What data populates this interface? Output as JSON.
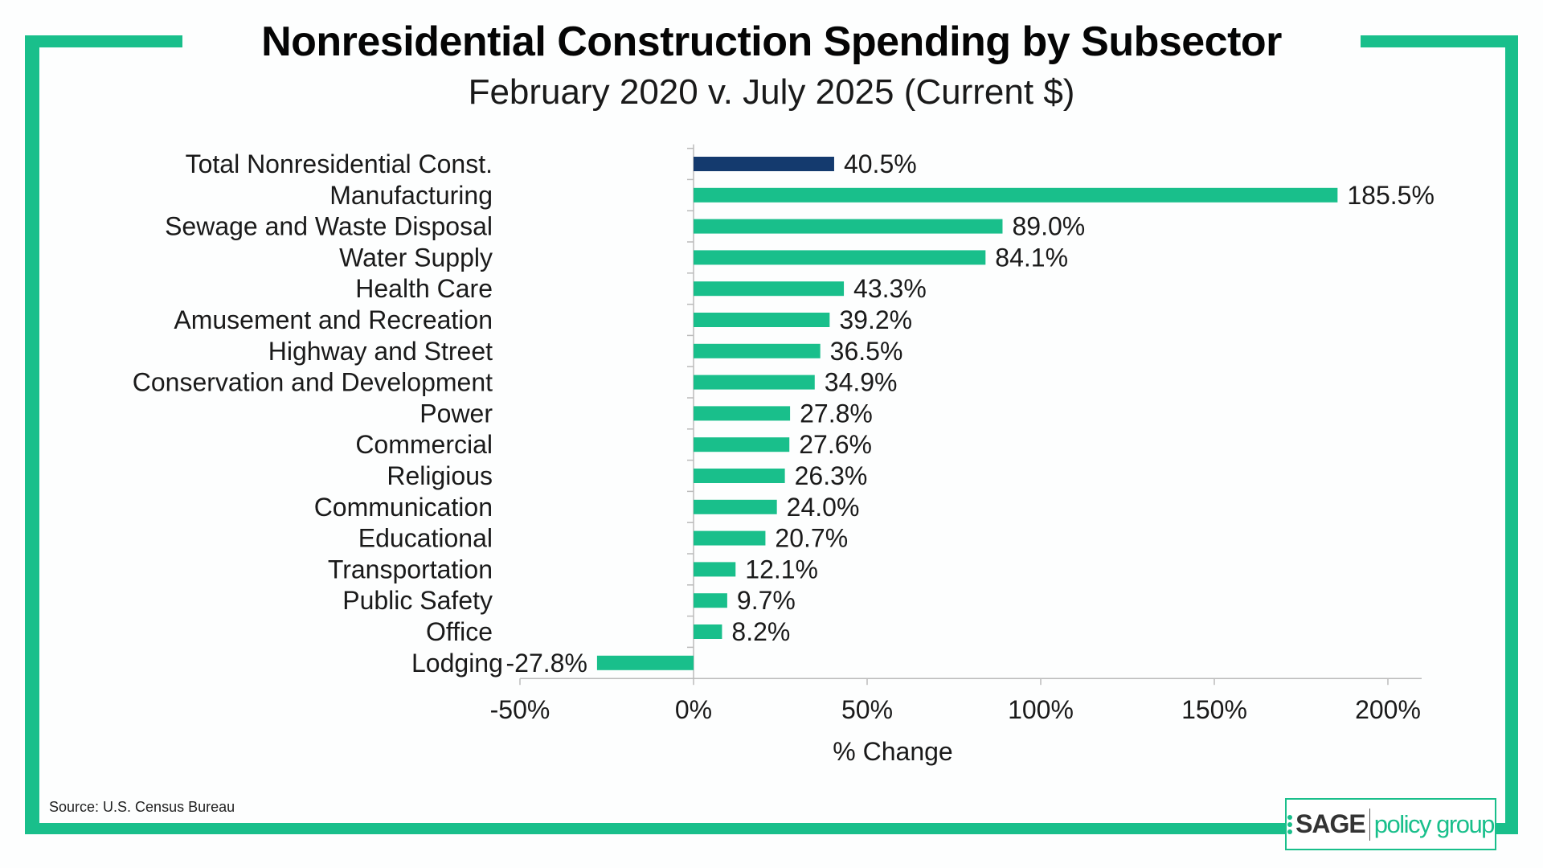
{
  "chart_data": {
    "type": "bar",
    "orientation": "horizontal",
    "title": "Nonresidential Construction Spending by Subsector",
    "subtitle": "February 2020 v. July 2025 (Current $)",
    "xlabel": "% Change",
    "ylabel": "",
    "xlim": [
      -50,
      200
    ],
    "xticks": [
      "-50%",
      "0%",
      "50%",
      "100%",
      "150%",
      "200%"
    ],
    "xtick_values": [
      -50,
      0,
      50,
      100,
      150,
      200
    ],
    "grid": false,
    "categories": [
      "Total Nonresidential Const.",
      "Manufacturing",
      "Sewage and Waste Disposal",
      "Water Supply",
      "Health Care",
      "Amusement and Recreation",
      "Highway and Street",
      "Conservation and Development",
      "Power",
      "Commercial",
      "Religious",
      "Communication",
      "Educational",
      "Transportation",
      "Public Safety",
      "Office",
      "Lodging"
    ],
    "values": [
      40.5,
      185.5,
      89.0,
      84.1,
      43.3,
      39.2,
      36.5,
      34.9,
      27.8,
      27.6,
      26.3,
      24.0,
      20.7,
      12.1,
      9.7,
      8.2,
      -27.8
    ],
    "data_labels": [
      "40.5%",
      "185.5%",
      "89.0%",
      "84.1%",
      "43.3%",
      "39.2%",
      "36.5%",
      "34.9%",
      "27.8%",
      "27.6%",
      "26.3%",
      "24.0%",
      "20.7%",
      "12.1%",
      "9.7%",
      "8.2%",
      "-27.8%"
    ],
    "colors": {
      "highlight": "#143a6e",
      "default": "#19bf8b"
    },
    "highlight_index": 0
  },
  "footer": {
    "source": "Source: U.S. Census Bureau"
  },
  "logo": {
    "brand": "SAGE",
    "suffix": "policy group"
  },
  "theme": {
    "frame_color": "#19bf8b"
  }
}
